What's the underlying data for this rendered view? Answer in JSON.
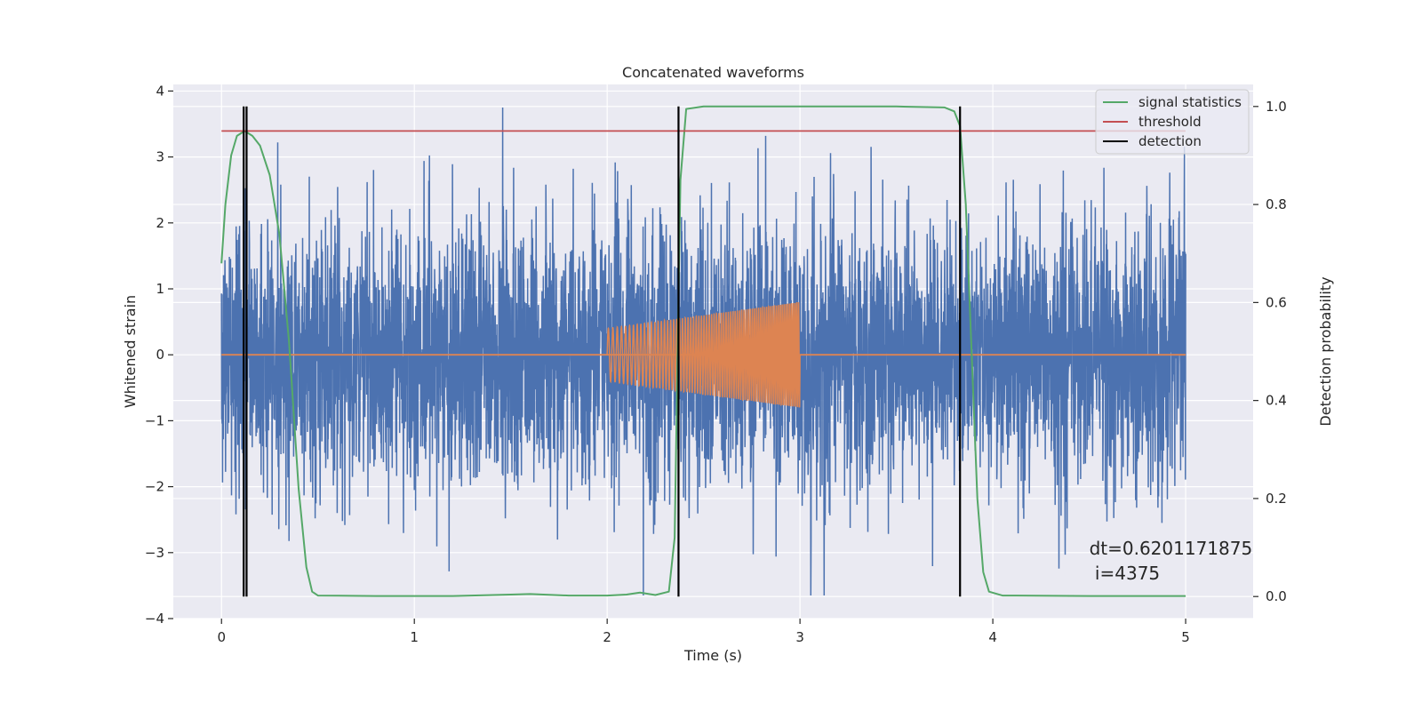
{
  "chart_data": {
    "type": "line",
    "title": "Concatenated waveforms",
    "xlabel": "Time (s)",
    "ylabel": "Whitened strain",
    "y2label": "Detection probability",
    "xlim": [
      -0.25,
      5.35
    ],
    "ylim": [
      -4.0,
      4.1
    ],
    "y2lim": [
      -0.045,
      1.045
    ],
    "xticks": [
      0,
      1,
      2,
      3,
      4,
      5
    ],
    "yticks": [
      -4,
      -3,
      -2,
      -1,
      0,
      1,
      2,
      3,
      4
    ],
    "y2ticks": [
      0.0,
      0.2,
      0.4,
      0.6,
      0.8,
      1.0
    ],
    "xtick_labels": [
      "0",
      "1",
      "2",
      "3",
      "4",
      "5"
    ],
    "ytick_labels": [
      "−4",
      "−3",
      "−2",
      "−1",
      "0",
      "1",
      "2",
      "3",
      "4"
    ],
    "y2tick_labels": [
      "0.0",
      "0.2",
      "0.4",
      "0.6",
      "0.8",
      "1.0"
    ],
    "grid": true,
    "legend_position": "top-right",
    "colors": {
      "background": "#eaeaf2",
      "grid": "#ffffff",
      "strain": "#4c72b0",
      "template": "#dd8452",
      "statistic": "#55a868",
      "threshold": "#c44e52",
      "detection": "#000000",
      "text": "#262626"
    },
    "series": [
      {
        "name": "",
        "axis": "left",
        "kind": "noise",
        "x_range": [
          0,
          5
        ],
        "amplitude": 1.0,
        "peak_max": 3.75,
        "peak_min": -3.65
      },
      {
        "name": "",
        "axis": "left",
        "kind": "chirp",
        "x_range": [
          2.0,
          3.0
        ],
        "amplitude_start": 0.4,
        "amplitude_end": 0.8,
        "cycles": 75,
        "baseline": [
          [
            0,
            0
          ],
          [
            5,
            0
          ]
        ]
      },
      {
        "name": "signal statistics",
        "axis": "right",
        "points": [
          [
            0.0,
            0.68
          ],
          [
            0.02,
            0.8
          ],
          [
            0.05,
            0.9
          ],
          [
            0.08,
            0.94
          ],
          [
            0.12,
            0.95
          ],
          [
            0.16,
            0.94
          ],
          [
            0.2,
            0.92
          ],
          [
            0.25,
            0.86
          ],
          [
            0.3,
            0.74
          ],
          [
            0.35,
            0.52
          ],
          [
            0.4,
            0.22
          ],
          [
            0.44,
            0.06
          ],
          [
            0.47,
            0.01
          ],
          [
            0.5,
            0.002
          ],
          [
            0.8,
            0.001
          ],
          [
            1.2,
            0.001
          ],
          [
            1.5,
            0.004
          ],
          [
            1.6,
            0.005
          ],
          [
            1.8,
            0.002
          ],
          [
            2.0,
            0.002
          ],
          [
            2.1,
            0.004
          ],
          [
            2.17,
            0.008
          ],
          [
            2.25,
            0.003
          ],
          [
            2.32,
            0.01
          ],
          [
            2.35,
            0.12
          ],
          [
            2.38,
            0.85
          ],
          [
            2.41,
            0.995
          ],
          [
            2.5,
            1.0
          ],
          [
            3.0,
            1.0
          ],
          [
            3.5,
            1.0
          ],
          [
            3.75,
            0.998
          ],
          [
            3.8,
            0.99
          ],
          [
            3.83,
            0.96
          ],
          [
            3.86,
            0.8
          ],
          [
            3.89,
            0.5
          ],
          [
            3.92,
            0.2
          ],
          [
            3.95,
            0.05
          ],
          [
            3.98,
            0.01
          ],
          [
            4.05,
            0.002
          ],
          [
            4.5,
            0.001
          ],
          [
            5.0,
            0.001
          ]
        ]
      },
      {
        "name": "threshold",
        "axis": "right",
        "points": [
          [
            0.0,
            0.95
          ],
          [
            5.0,
            0.95
          ]
        ]
      },
      {
        "name": "detection",
        "axis": "right",
        "vlines": [
          0.115,
          0.13,
          2.37,
          3.83
        ],
        "range": [
          0.0,
          1.0
        ]
      }
    ],
    "annotation": {
      "line1": "dt=0.6201171875",
      "line2": " i=4375",
      "x": 4.5,
      "y": -3.0
    }
  }
}
